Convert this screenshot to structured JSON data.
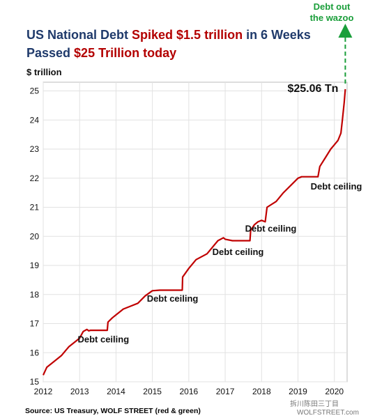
{
  "chart_data": {
    "type": "line",
    "title_parts": [
      {
        "text": "US National Debt ",
        "color": "#1f3a6b"
      },
      {
        "text": "Spiked $1.5 trillion",
        "color": "#b30000"
      },
      {
        "text": " in 6 Weeks",
        "color": "#1f3a6b"
      }
    ],
    "subtitle_parts": [
      {
        "text": "Passed ",
        "color": "#1f3a6b"
      },
      {
        "text": "$25 Trillion",
        "color": "#b30000"
      },
      {
        "text": "  today",
        "color": "#b30000"
      }
    ],
    "ylabel": "$ trillion",
    "xlim": [
      2012,
      2020.35
    ],
    "ylim": [
      15,
      25.3
    ],
    "x_ticks": [
      2012,
      2013,
      2014,
      2015,
      2016,
      2017,
      2018,
      2019,
      2020
    ],
    "y_ticks": [
      15,
      16,
      17,
      18,
      19,
      20,
      21,
      22,
      23,
      24,
      25
    ],
    "grid": true,
    "series": [
      {
        "color": "#c00000",
        "points": [
          [
            2012.0,
            15.23
          ],
          [
            2012.1,
            15.5
          ],
          [
            2012.3,
            15.7
          ],
          [
            2012.5,
            15.9
          ],
          [
            2012.7,
            16.2
          ],
          [
            2012.9,
            16.4
          ],
          [
            2013.0,
            16.5
          ],
          [
            2013.1,
            16.73
          ],
          [
            2013.2,
            16.8
          ],
          [
            2013.25,
            16.75
          ],
          [
            2013.3,
            16.77
          ],
          [
            2013.76,
            16.77
          ],
          [
            2013.78,
            17.05
          ],
          [
            2013.9,
            17.2
          ],
          [
            2014.0,
            17.3
          ],
          [
            2014.2,
            17.5
          ],
          [
            2014.4,
            17.6
          ],
          [
            2014.6,
            17.7
          ],
          [
            2014.8,
            17.95
          ],
          [
            2015.0,
            18.13
          ],
          [
            2015.2,
            18.15
          ],
          [
            2015.82,
            18.15
          ],
          [
            2015.83,
            18.6
          ],
          [
            2016.0,
            18.9
          ],
          [
            2016.2,
            19.2
          ],
          [
            2016.5,
            19.4
          ],
          [
            2016.8,
            19.85
          ],
          [
            2016.95,
            19.95
          ],
          [
            2017.0,
            19.9
          ],
          [
            2017.2,
            19.85
          ],
          [
            2017.68,
            19.85
          ],
          [
            2017.7,
            20.2
          ],
          [
            2017.8,
            20.4
          ],
          [
            2017.9,
            20.5
          ],
          [
            2018.0,
            20.55
          ],
          [
            2018.1,
            20.5
          ],
          [
            2018.15,
            21.0
          ],
          [
            2018.4,
            21.2
          ],
          [
            2018.6,
            21.5
          ],
          [
            2018.8,
            21.75
          ],
          [
            2019.0,
            22.0
          ],
          [
            2019.1,
            22.05
          ],
          [
            2019.55,
            22.05
          ],
          [
            2019.6,
            22.4
          ],
          [
            2019.75,
            22.7
          ],
          [
            2019.9,
            23.0
          ],
          [
            2020.0,
            23.15
          ],
          [
            2020.1,
            23.3
          ],
          [
            2020.18,
            23.55
          ],
          [
            2020.22,
            24.0
          ],
          [
            2020.27,
            24.6
          ],
          [
            2020.3,
            25.06
          ]
        ]
      }
    ],
    "arrow": {
      "color": "#1a9e3a",
      "label_lines": [
        "Debt out",
        "the wazoo"
      ]
    },
    "annotations": [
      {
        "text": "$25.06 Tn",
        "x": 2020.3,
        "y": 25.06
      },
      {
        "text": "Debt ceiling",
        "x": 2013.5,
        "y": 16.5
      },
      {
        "text": "Debt ceiling",
        "x": 2015.4,
        "y": 17.9
      },
      {
        "text": "Debt ceiling",
        "x": 2017.2,
        "y": 19.5
      },
      {
        "text": "Debt ceiling",
        "x": 2018.1,
        "y": 20.3
      },
      {
        "text": "Debt ceiling",
        "x": 2019.9,
        "y": 21.75
      }
    ],
    "source": "Source: US Treasury, WOLF STREET (red & green)"
  },
  "watermark": "WOLFSTREET.com",
  "watermark2": "拆川陈田三丁目"
}
